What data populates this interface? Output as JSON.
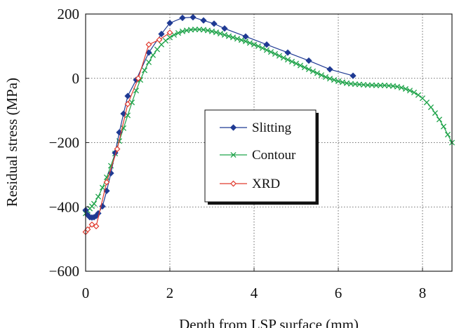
{
  "chart_data": {
    "type": "line",
    "title": "",
    "xlabel": "Depth from LSP surface (mm)",
    "ylabel": "Residual stress (MPa)",
    "xlim": [
      0,
      8.7
    ],
    "ylim": [
      -600,
      200
    ],
    "xticks": [
      0,
      2,
      4,
      6,
      8
    ],
    "yticks": [
      200,
      0,
      -200,
      -400,
      -600
    ],
    "xtick_labels": [
      "0",
      "2",
      "4",
      "6",
      "8"
    ],
    "ytick_labels": [
      "200",
      "0",
      "−200",
      "−400",
      "−600"
    ],
    "grid": true,
    "legend_position": "center",
    "series": [
      {
        "name": "Slitting",
        "color": "#1f3a93",
        "marker": "diamond-filled",
        "x": [
          0.0,
          0.05,
          0.1,
          0.15,
          0.2,
          0.25,
          0.3,
          0.4,
          0.5,
          0.6,
          0.7,
          0.8,
          0.9,
          1.0,
          1.2,
          1.5,
          1.8,
          2.0,
          2.3,
          2.55,
          2.8,
          3.05,
          3.3,
          3.8,
          4.3,
          4.8,
          5.3,
          5.8,
          6.35
        ],
        "y": [
          -410,
          -425,
          -432,
          -433,
          -432,
          -428,
          -420,
          -398,
          -350,
          -295,
          -232,
          -168,
          -110,
          -55,
          -5,
          80,
          138,
          172,
          188,
          190,
          180,
          170,
          155,
          130,
          105,
          80,
          55,
          28,
          8
        ]
      },
      {
        "name": "Contour",
        "color": "#1fa34a",
        "marker": "x",
        "x": [
          0.0,
          0.05,
          0.1,
          0.15,
          0.2,
          0.3,
          0.4,
          0.5,
          0.6,
          0.7,
          0.8,
          0.9,
          1.0,
          1.1,
          1.2,
          1.3,
          1.4,
          1.5,
          1.6,
          1.7,
          1.8,
          1.9,
          2.0,
          2.1,
          2.2,
          2.3,
          2.4,
          2.5,
          2.6,
          2.7,
          2.8,
          2.9,
          3.0,
          3.1,
          3.2,
          3.3,
          3.4,
          3.5,
          3.6,
          3.7,
          3.8,
          3.9,
          4.0,
          4.1,
          4.2,
          4.3,
          4.4,
          4.5,
          4.6,
          4.7,
          4.8,
          4.9,
          5.0,
          5.1,
          5.2,
          5.3,
          5.4,
          5.5,
          5.6,
          5.7,
          5.8,
          5.9,
          6.0,
          6.1,
          6.2,
          6.3,
          6.4,
          6.5,
          6.6,
          6.7,
          6.8,
          6.9,
          7.0,
          7.1,
          7.2,
          7.3,
          7.4,
          7.5,
          7.6,
          7.7,
          7.8,
          7.9,
          8.0,
          8.1,
          8.2,
          8.3,
          8.4,
          8.5,
          8.6,
          8.7
        ],
        "y": [
          -420,
          -412,
          -405,
          -398,
          -390,
          -368,
          -340,
          -308,
          -272,
          -234,
          -195,
          -155,
          -115,
          -75,
          -38,
          -5,
          25,
          50,
          72,
          90,
          105,
          117,
          127,
          135,
          141,
          146,
          149,
          151,
          152,
          152,
          151,
          149,
          146,
          143,
          139,
          135,
          131,
          127,
          123,
          119,
          115,
          110,
          105,
          100,
          94,
          88,
          82,
          76,
          70,
          64,
          58,
          52,
          46,
          40,
          34,
          28,
          22,
          16,
          10,
          4,
          -1,
          -5,
          -9,
          -12,
          -15,
          -17,
          -18,
          -19,
          -20,
          -21,
          -21,
          -22,
          -22,
          -22,
          -23,
          -24,
          -26,
          -29,
          -33,
          -38,
          -44,
          -52,
          -62,
          -75,
          -90,
          -108,
          -128,
          -150,
          -175,
          -200
        ]
      },
      {
        "name": "XRD",
        "color": "#e03a2e",
        "marker": "diamond-open",
        "x": [
          0.0,
          0.05,
          0.15,
          0.25,
          0.5,
          0.75,
          1.0,
          1.25,
          1.5,
          1.75,
          2.0
        ],
        "y": [
          -478,
          -470,
          -455,
          -460,
          -323,
          -220,
          -80,
          0,
          105,
          120,
          142
        ]
      }
    ]
  }
}
